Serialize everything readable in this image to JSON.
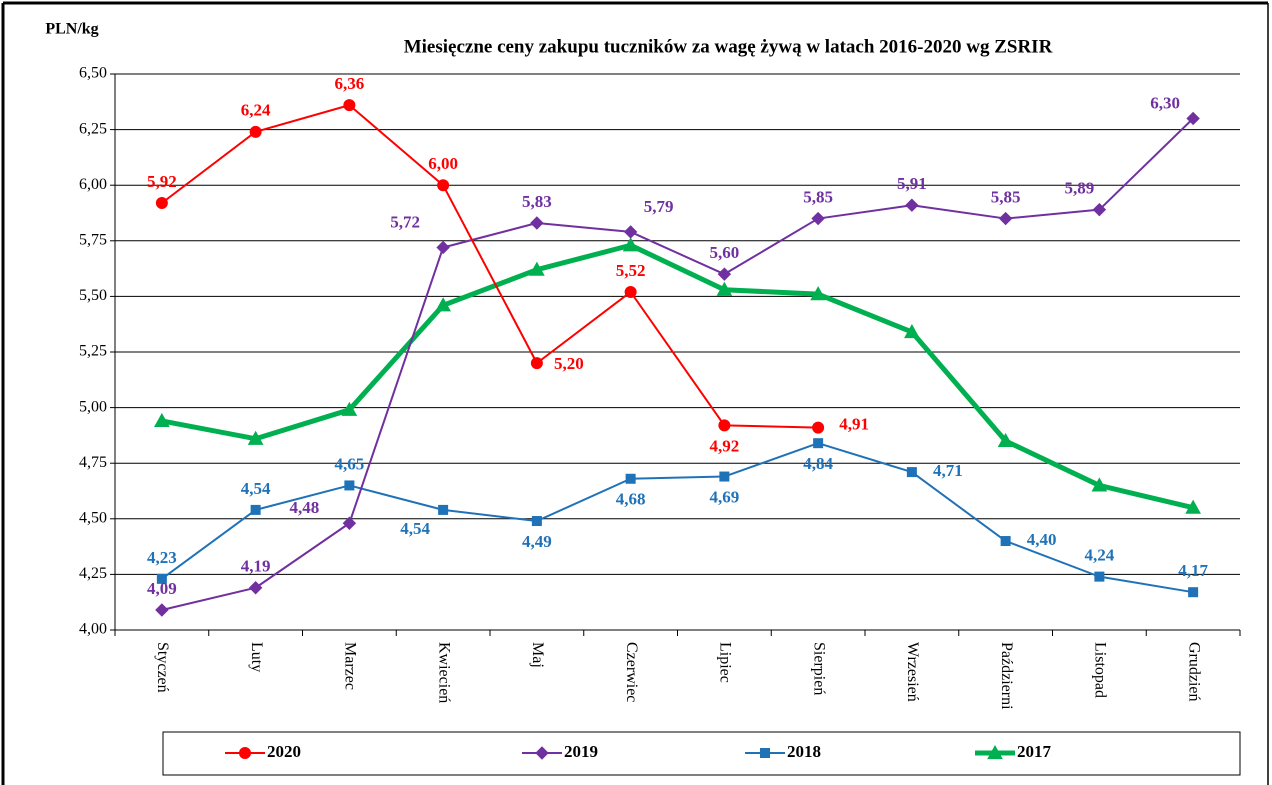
{
  "chart_data": {
    "type": "line",
    "title": "Miesięczne ceny zakupu tuczników za wagę żywą w latach 2016-2020  wg ZSRIR",
    "y_axis_label": "PLN/kg",
    "categories": [
      "Styczeń",
      "Luty",
      "Marzec",
      "Kwiecień",
      "Maj",
      "Czerwiec",
      "Lipiec",
      "Sierpień",
      "Wrzesień",
      "Październi",
      "Listopad",
      "Grudzień"
    ],
    "ylim": [
      4.0,
      6.5
    ],
    "yticks": [
      {
        "value": 4.0,
        "label": "4,00"
      },
      {
        "value": 4.25,
        "label": "4,25"
      },
      {
        "value": 4.5,
        "label": "4,50"
      },
      {
        "value": 4.75,
        "label": "4,75"
      },
      {
        "value": 5.0,
        "label": "5,00"
      },
      {
        "value": 5.25,
        "label": "5,25"
      },
      {
        "value": 5.5,
        "label": "5,50"
      },
      {
        "value": 5.75,
        "label": "5,75"
      },
      {
        "value": 6.0,
        "label": "6,00"
      },
      {
        "value": 6.25,
        "label": "6,25"
      },
      {
        "value": 6.5,
        "label": "6,50"
      }
    ],
    "grid": true,
    "legend": "bottom",
    "series": [
      {
        "name": "2020",
        "color": "#ff0000",
        "marker": "circle",
        "values": [
          5.92,
          6.24,
          6.36,
          6.0,
          5.2,
          5.52,
          4.92,
          4.91,
          null,
          null,
          null,
          null
        ],
        "value_labels": [
          "5,92",
          "6,24",
          "6,36",
          "6,00",
          "5,20",
          "5,52",
          "4,92",
          "4,91",
          null,
          null,
          null,
          null
        ]
      },
      {
        "name": "2019",
        "color": "#7030a0",
        "marker": "diamond",
        "values": [
          4.09,
          4.19,
          4.48,
          5.72,
          5.83,
          5.79,
          5.6,
          5.85,
          5.91,
          5.85,
          5.89,
          6.3
        ],
        "value_labels": [
          "4,09",
          "4,19",
          "4,48",
          "5,72",
          "5,83",
          "5,79",
          "5,60",
          "5,85",
          "5,91",
          "5,85",
          "5,89",
          "6,30"
        ]
      },
      {
        "name": "2018",
        "color": "#1f72b8",
        "marker": "square",
        "values": [
          4.23,
          4.54,
          4.65,
          4.54,
          4.49,
          4.68,
          4.69,
          4.84,
          4.71,
          4.4,
          4.24,
          4.17
        ],
        "value_labels": [
          "4,23",
          "4,54",
          "4,65",
          "4,54",
          "4,49",
          "4,68",
          "4,69",
          "4,84",
          "4,71",
          "4,40",
          "4,24",
          "4,17"
        ]
      },
      {
        "name": "2017",
        "color": "#00b050",
        "marker": "triangle",
        "values": [
          4.94,
          4.86,
          4.99,
          5.46,
          5.62,
          5.73,
          5.53,
          5.51,
          5.34,
          4.85,
          4.65,
          4.55
        ]
      }
    ]
  }
}
